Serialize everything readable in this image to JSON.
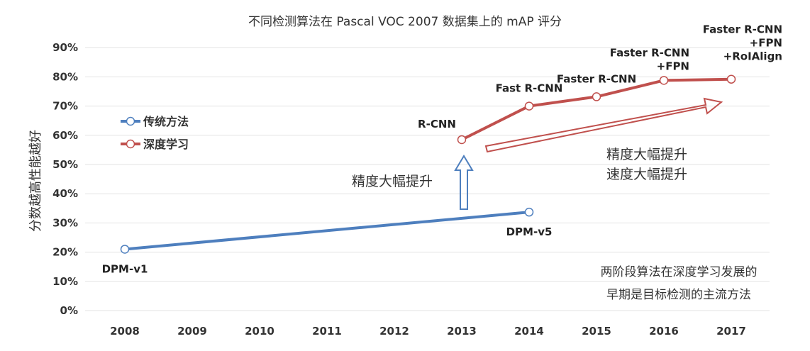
{
  "chart_data": {
    "type": "line",
    "title": "不同检测算法在 Pascal VOC 2007 数据集上的 mAP 评分",
    "ylabel": "分数越高性能越好",
    "xlabel": "",
    "categories": [
      "2008",
      "2009",
      "2010",
      "2011",
      "2012",
      "2013",
      "2014",
      "2015",
      "2016",
      "2017"
    ],
    "y_ticks": [
      "0%",
      "10%",
      "20%",
      "30%",
      "40%",
      "50%",
      "60%",
      "70%",
      "80%",
      "90%"
    ],
    "ylim": [
      0,
      90
    ],
    "grid": true,
    "legend_position": "left",
    "series": [
      {
        "name": "传统方法",
        "color": "#4e7fbe",
        "points": [
          {
            "x": "2008",
            "y": 21,
            "label": "DPM-v1"
          },
          {
            "x": "2014",
            "y": 33.7,
            "label": "DPM-v5"
          }
        ]
      },
      {
        "name": "深度学习",
        "color": "#c0504d",
        "points": [
          {
            "x": "2013",
            "y": 58.5,
            "label": "R-CNN"
          },
          {
            "x": "2014",
            "y": 70,
            "label": "Fast R-CNN"
          },
          {
            "x": "2015",
            "y": 73.2,
            "label": "Faster R-CNN"
          },
          {
            "x": "2016",
            "y": 78.8,
            "label": "Faster R-CNN\n+FPN"
          },
          {
            "x": "2017",
            "y": 79.2,
            "label": "Faster R-CNN\n+FPN\n+RoIAlign"
          }
        ]
      }
    ],
    "annotations": {
      "up_arrow_text": "精度大幅提升",
      "diag_arrow_text": [
        "精度大幅提升",
        "速度大幅提升"
      ],
      "note": [
        "两阶段算法在深度学习发展的",
        "早期是目标检测的主流方法"
      ]
    }
  }
}
